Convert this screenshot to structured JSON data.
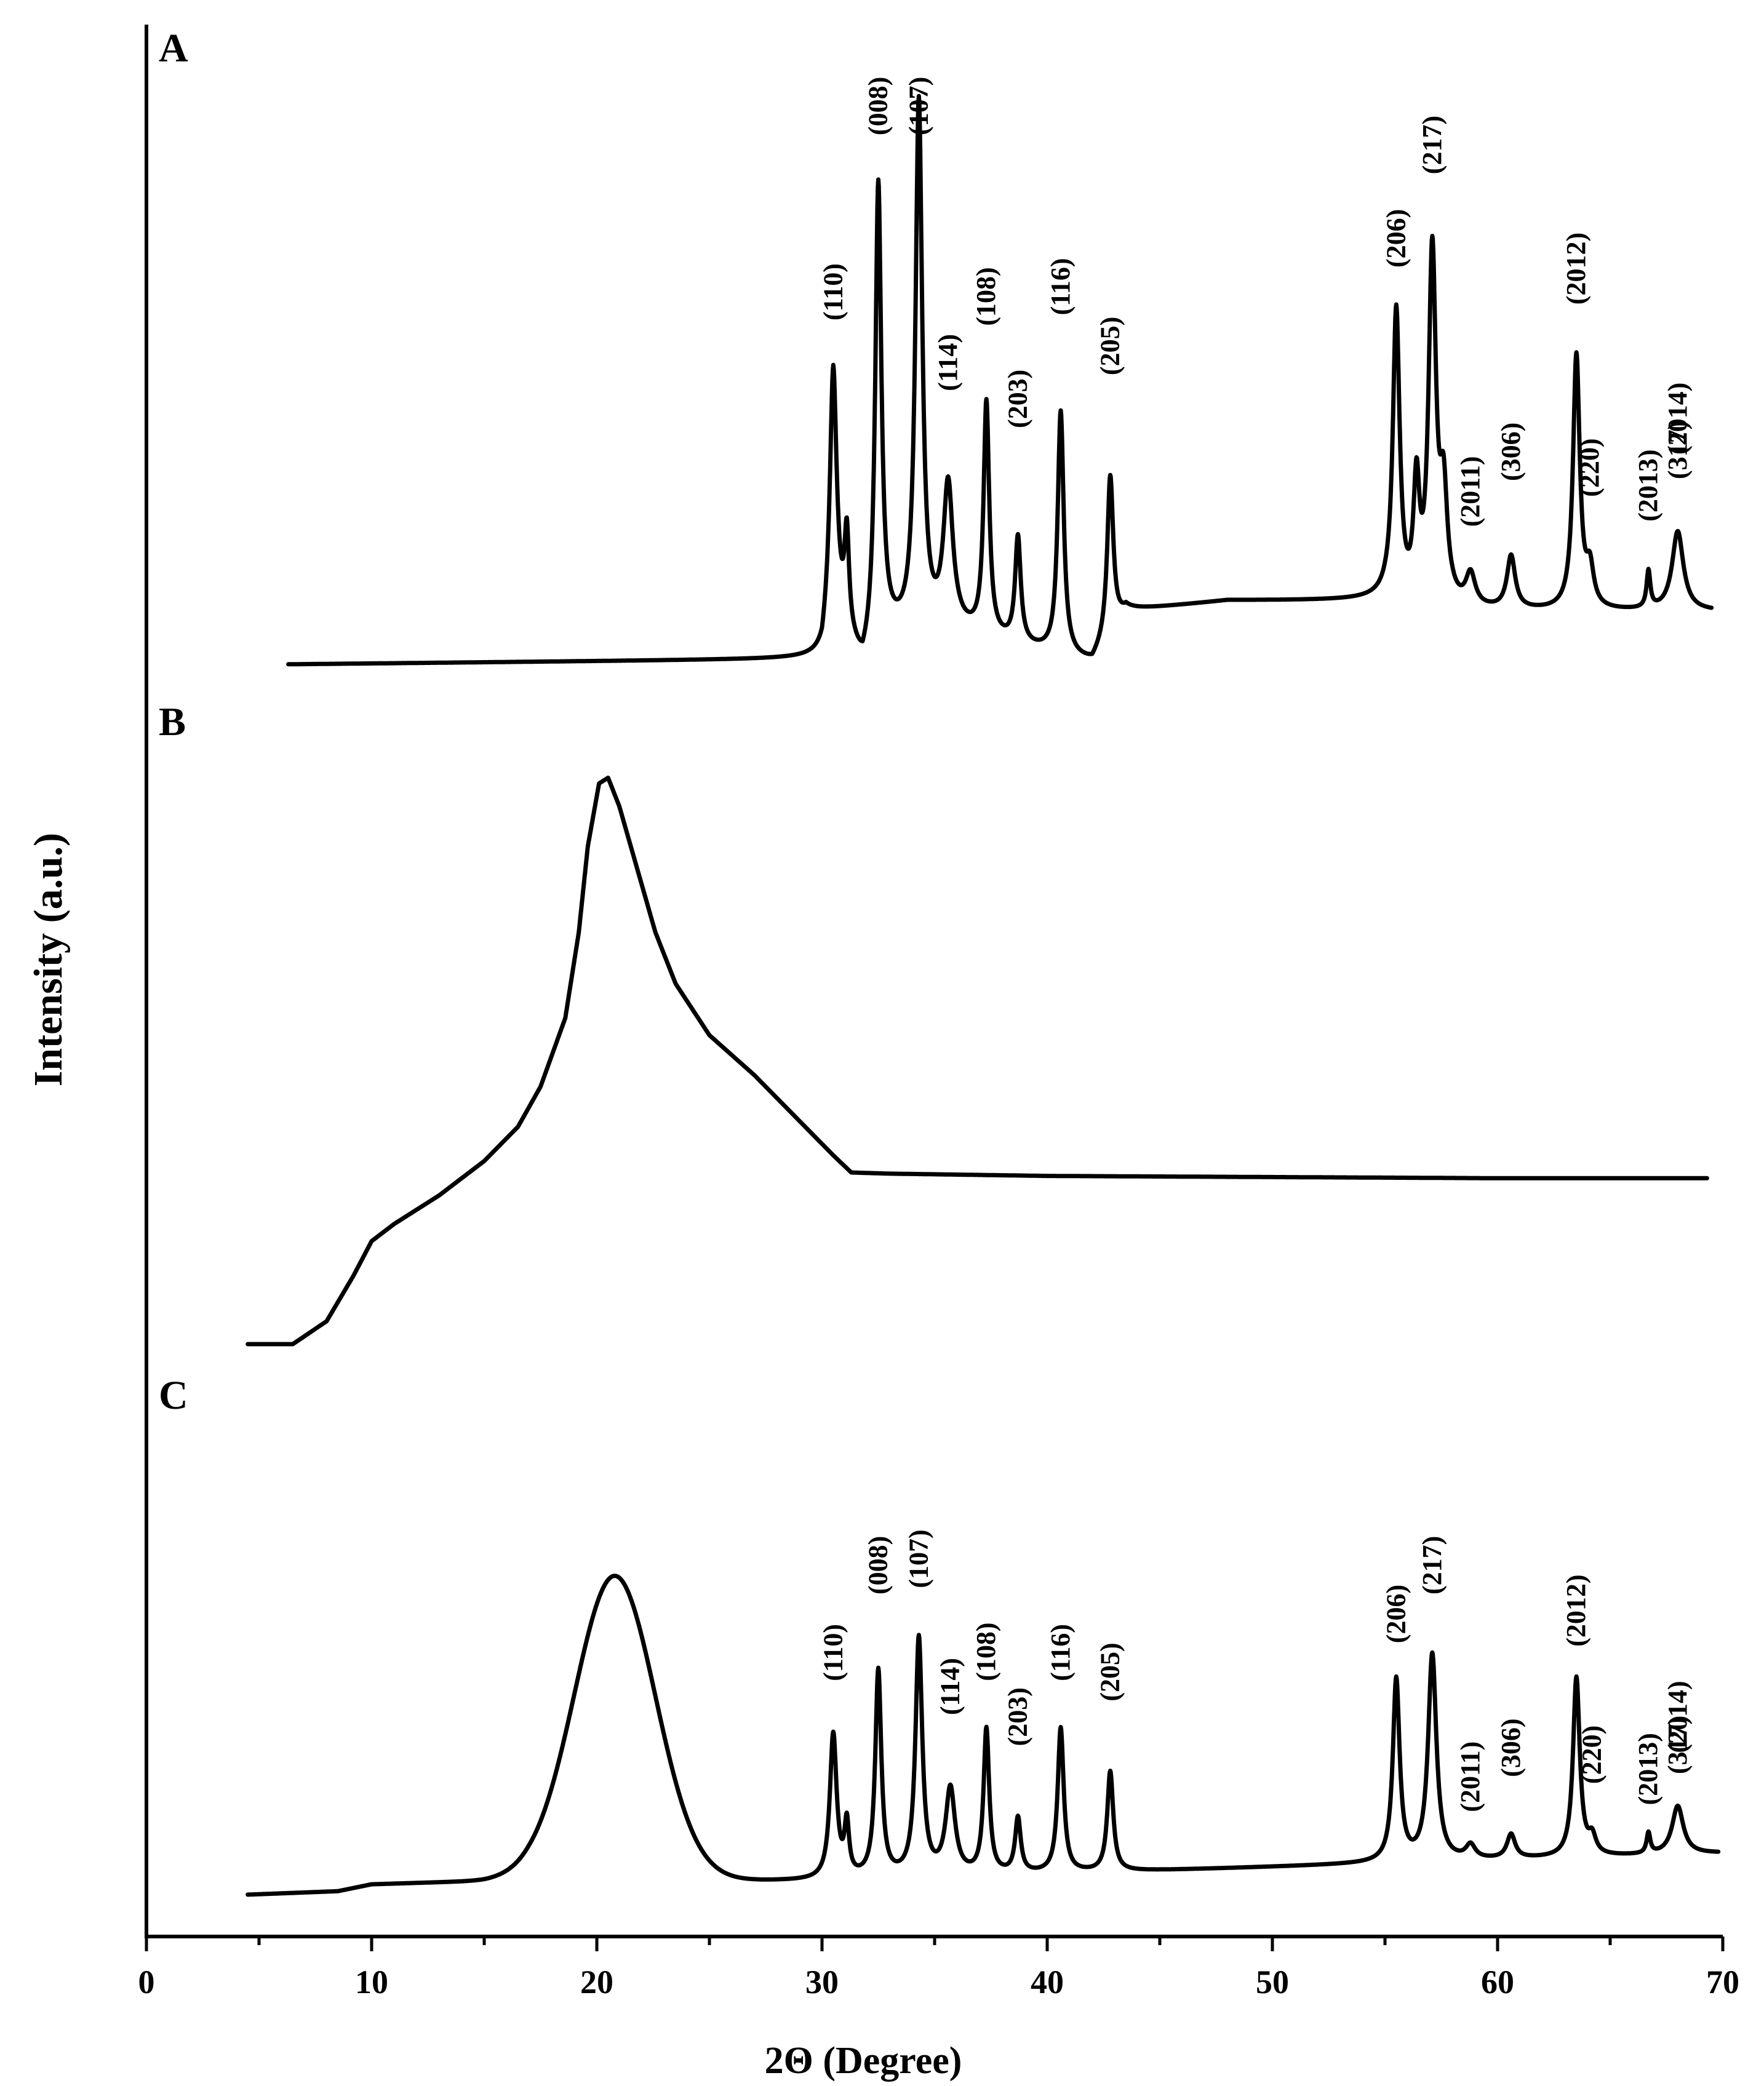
{
  "chart_data": {
    "type": "line",
    "title": "",
    "xlabel": "2Θ (Degree)",
    "ylabel": "Intensity (a.u.)",
    "xlim": [
      0,
      70
    ],
    "x_ticks": [
      0,
      10,
      20,
      30,
      40,
      50,
      60,
      70
    ],
    "x_tick_labels": [
      "0",
      "10",
      "20",
      "30",
      "40",
      "50",
      "60",
      "70"
    ],
    "grid": false,
    "panels": [
      {
        "label": "A",
        "x_range": [
          6.3,
          69.5
        ],
        "baseline": 0.0,
        "background_points": [
          [
            6.3,
            0
          ],
          [
            30,
            0.01
          ],
          [
            30.5,
            0.1
          ],
          [
            31.8,
            -0.02
          ],
          [
            32.8,
            0.05
          ],
          [
            36,
            0.06
          ],
          [
            42,
            0.0
          ],
          [
            43.5,
            0.1
          ],
          [
            48,
            0.12
          ],
          [
            55,
            0.12
          ],
          [
            57,
            0.08
          ],
          [
            58,
            0.1
          ],
          [
            69.5,
            0.1
          ]
        ],
        "peaks": [
          {
            "x": 30.5,
            "height": 0.45,
            "width": 0.18,
            "label": "(110)"
          },
          {
            "x": 31.1,
            "height": 0.18,
            "width": 0.12,
            "label": ""
          },
          {
            "x": 32.5,
            "height": 0.87,
            "width": 0.16,
            "label": "(008)"
          },
          {
            "x": 34.3,
            "height": 1.0,
            "width": 0.18,
            "label": "(107)"
          },
          {
            "x": 35.6,
            "height": 0.27,
            "width": 0.25,
            "label": "(114)"
          },
          {
            "x": 37.3,
            "height": 0.44,
            "width": 0.15,
            "label": "(108)"
          },
          {
            "x": 38.7,
            "height": 0.2,
            "width": 0.15,
            "label": "(203)"
          },
          {
            "x": 40.6,
            "height": 0.46,
            "width": 0.16,
            "label": "(116)"
          },
          {
            "x": 42.8,
            "height": 0.3,
            "width": 0.16,
            "label": "(205)"
          },
          {
            "x": 55.5,
            "height": 0.55,
            "width": 0.18,
            "label": "(206)"
          },
          {
            "x": 56.4,
            "height": 0.22,
            "width": 0.16,
            "label": ""
          },
          {
            "x": 57.1,
            "height": 0.68,
            "width": 0.2,
            "label": "(217)"
          },
          {
            "x": 57.6,
            "height": 0.2,
            "width": 0.2,
            "label": ""
          },
          {
            "x": 58.8,
            "height": 0.06,
            "width": 0.25,
            "label": "(2011)"
          },
          {
            "x": 60.6,
            "height": 0.1,
            "width": 0.22,
            "label": "(306)"
          },
          {
            "x": 63.5,
            "height": 0.48,
            "width": 0.18,
            "label": "(2012)"
          },
          {
            "x": 64.1,
            "height": 0.07,
            "width": 0.2,
            "label": "(220)"
          },
          {
            "x": 66.7,
            "height": 0.07,
            "width": 0.1,
            "label": "(2013)"
          },
          {
            "x": 68.0,
            "height": 0.15,
            "width": 0.3,
            "label": "(2014)"
          }
        ],
        "extra_labels": [
          "(317)"
        ]
      },
      {
        "label": "B",
        "x_range": [
          4.5,
          69.3
        ],
        "description_points": [
          [
            4.5,
            0
          ],
          [
            6.5,
            0.0
          ],
          [
            8,
            0.04
          ],
          [
            9.2,
            0.12
          ],
          [
            10,
            0.18
          ],
          [
            11,
            0.21
          ],
          [
            13,
            0.26
          ],
          [
            15,
            0.32
          ],
          [
            16.5,
            0.38
          ],
          [
            17.5,
            0.45
          ],
          [
            18.6,
            0.57
          ],
          [
            19.2,
            0.72
          ],
          [
            19.6,
            0.87
          ],
          [
            20.1,
            0.98
          ],
          [
            20.5,
            0.99
          ],
          [
            21,
            0.94
          ],
          [
            21.8,
            0.83
          ],
          [
            22.6,
            0.72
          ],
          [
            23.5,
            0.63
          ],
          [
            25,
            0.54
          ],
          [
            27,
            0.47
          ],
          [
            29,
            0.39
          ],
          [
            30.5,
            0.33
          ],
          [
            31.3,
            0.3
          ],
          [
            33,
            0.298
          ],
          [
            40,
            0.294
          ],
          [
            50,
            0.292
          ],
          [
            60,
            0.29
          ],
          [
            69.3,
            0.29
          ]
        ]
      },
      {
        "label": "C",
        "x_range": [
          4.5,
          69.8
        ],
        "amorphous_hump": {
          "x": 20.8,
          "height": 0.88,
          "width": 1.8
        },
        "step_points": [
          [
            4.5,
            0
          ],
          [
            8.5,
            0.01
          ],
          [
            10,
            0.03
          ],
          [
            15,
            0.04
          ],
          [
            17,
            0.05
          ],
          [
            24.5,
            0.04
          ],
          [
            30,
            0.04
          ],
          [
            69.8,
            0.12
          ]
        ],
        "peaks": [
          {
            "x": 30.5,
            "height": 0.42,
            "width": 0.18,
            "label": "(110)"
          },
          {
            "x": 31.1,
            "height": 0.15,
            "width": 0.12,
            "label": ""
          },
          {
            "x": 32.5,
            "height": 0.6,
            "width": 0.16,
            "label": "(008)"
          },
          {
            "x": 34.3,
            "height": 0.69,
            "width": 0.18,
            "label": "(107)"
          },
          {
            "x": 35.7,
            "height": 0.25,
            "width": 0.25,
            "label": "(114)"
          },
          {
            "x": 37.3,
            "height": 0.42,
            "width": 0.15,
            "label": "(108)"
          },
          {
            "x": 38.7,
            "height": 0.16,
            "width": 0.15,
            "label": "(203)"
          },
          {
            "x": 40.6,
            "height": 0.42,
            "width": 0.16,
            "label": "(116)"
          },
          {
            "x": 42.8,
            "height": 0.29,
            "width": 0.16,
            "label": "(205)"
          },
          {
            "x": 55.5,
            "height": 0.53,
            "width": 0.18,
            "label": "(206)"
          },
          {
            "x": 57.1,
            "height": 0.6,
            "width": 0.22,
            "label": "(217)"
          },
          {
            "x": 58.8,
            "height": 0.04,
            "width": 0.25,
            "label": "(2011)"
          },
          {
            "x": 60.6,
            "height": 0.07,
            "width": 0.22,
            "label": "(306)"
          },
          {
            "x": 63.5,
            "height": 0.52,
            "width": 0.18,
            "label": "(2012)"
          },
          {
            "x": 64.2,
            "height": 0.05,
            "width": 0.2,
            "label": "(220)"
          },
          {
            "x": 66.7,
            "height": 0.06,
            "width": 0.1,
            "label": "(2013)"
          },
          {
            "x": 68.0,
            "height": 0.14,
            "width": 0.3,
            "label": "(2014)"
          }
        ],
        "extra_labels": [
          "(317)"
        ]
      }
    ]
  }
}
